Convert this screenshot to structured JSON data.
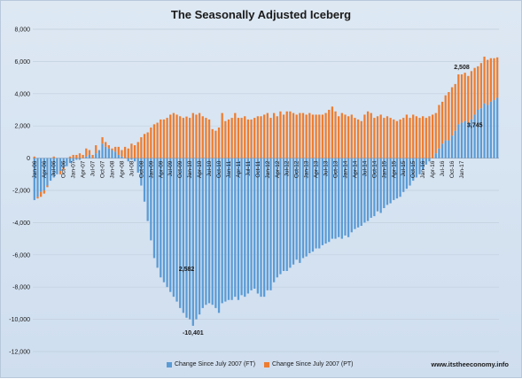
{
  "title": "The Seasonally Adjusted Iceberg",
  "source": "www.itstheeconomy.info",
  "chart_data": {
    "type": "bar",
    "stacked": true,
    "ylim": [
      -12000,
      8000
    ],
    "yticks": [
      8000,
      6000,
      4000,
      2000,
      0,
      -2000,
      -4000,
      -6000,
      -8000,
      -10000,
      -12000
    ],
    "ytick_labels": [
      "8,000",
      "6,000",
      "4,000",
      "2,000",
      "0",
      "-2,000",
      "-4,000",
      "-6,000",
      "-8,000",
      "-10,000",
      "-12,000"
    ],
    "xtick_labels": [
      "Jan-06",
      "Apr-06",
      "Jul-06",
      "Oct-06",
      "Jan-07",
      "Apr-07",
      "Jul-07",
      "Oct-07",
      "Jan-08",
      "Apr-08",
      "Jul-08",
      "Oct-08",
      "Jan-09",
      "Apr-09",
      "Jul-09",
      "Oct-09",
      "Jan-10",
      "Apr-10",
      "Jul-10",
      "Oct-10",
      "Jan-11",
      "Apr-11",
      "Jul-11",
      "Oct-11",
      "Jan-12",
      "Apr-12",
      "Jul-12",
      "Oct-12",
      "Jan-13",
      "Apr-13",
      "Jul-13",
      "Oct-13",
      "Jan-14",
      "Apr-14",
      "Jul-14",
      "Oct-14",
      "Jan-15",
      "Apr-15",
      "Jul-15",
      "Oct-15",
      "Jan-16",
      "Apr-16",
      "Jul-16",
      "Oct-16",
      "Jan-17"
    ],
    "xtick_every": 3,
    "grid": "horizontal",
    "legend_position": "bottom",
    "series": [
      {
        "name": "Change Since July 2007 (FT)",
        "color": "#5b9bd5",
        "values": [
          -2600,
          -2400,
          -2100,
          -2000,
          -1700,
          -1400,
          -1200,
          -1000,
          -800,
          -600,
          -500,
          -300,
          -200,
          -100,
          -100,
          0,
          100,
          200,
          0,
          300,
          500,
          900,
          700,
          600,
          500,
          400,
          200,
          100,
          0,
          -200,
          -100,
          -200,
          -900,
          -1700,
          -2700,
          -3900,
          -5100,
          -6200,
          -6800,
          -7400,
          -7700,
          -8000,
          -8300,
          -8600,
          -8900,
          -9300,
          -9600,
          -9900,
          -10000,
          -10401,
          -10000,
          -9700,
          -9300,
          -9100,
          -9000,
          -9100,
          -9300,
          -9600,
          -9000,
          -8900,
          -8800,
          -8800,
          -8600,
          -8800,
          -8500,
          -8600,
          -8400,
          -8200,
          -8100,
          -8400,
          -8600,
          -8600,
          -8200,
          -8200,
          -7700,
          -7400,
          -7200,
          -7000,
          -7000,
          -6800,
          -6600,
          -6300,
          -6500,
          -6200,
          -6100,
          -5900,
          -5800,
          -5600,
          -5600,
          -5400,
          -5300,
          -5200,
          -5000,
          -5000,
          -4900,
          -5000,
          -4800,
          -4900,
          -4600,
          -4400,
          -4300,
          -4200,
          -4000,
          -3900,
          -3700,
          -3600,
          -3300,
          -3400,
          -3100,
          -2900,
          -2800,
          -2600,
          -2500,
          -2400,
          -2100,
          -1900,
          -1700,
          -1400,
          -1200,
          -1000,
          -700,
          -400,
          -200,
          0,
          300,
          600,
          900,
          1100,
          1100,
          1400,
          1700,
          2100,
          2200,
          2300,
          2200,
          2400,
          2700,
          3000,
          3100,
          3400,
          3300,
          3500,
          3600,
          3745
        ]
      },
      {
        "name": "Change Since July 2007 (PT)",
        "color": "#ed7d31",
        "values": [
          100,
          -100,
          -300,
          -200,
          -100,
          0,
          100,
          0,
          -200,
          -100,
          0,
          100,
          200,
          200,
          300,
          200,
          500,
          300,
          200,
          500,
          0,
          400,
          300,
          200,
          100,
          300,
          500,
          400,
          700,
          600,
          900,
          800,
          1000,
          1300,
          1500,
          1600,
          1900,
          2100,
          2200,
          2400,
          2400,
          2500,
          2700,
          2800,
          2700,
          2600,
          2500,
          2582,
          2500,
          2800,
          2700,
          2800,
          2600,
          2500,
          2400,
          1800,
          1700,
          1900,
          2800,
          2300,
          2400,
          2500,
          2800,
          2500,
          2500,
          2600,
          2400,
          2400,
          2500,
          2600,
          2600,
          2700,
          2800,
          2500,
          2800,
          2600,
          2900,
          2700,
          2900,
          2900,
          2800,
          2700,
          2800,
          2800,
          2700,
          2800,
          2700,
          2700,
          2700,
          2700,
          2800,
          3000,
          3200,
          2900,
          2600,
          2800,
          2700,
          2600,
          2700,
          2500,
          2400,
          2300,
          2700,
          2900,
          2800,
          2500,
          2600,
          2700,
          2500,
          2600,
          2500,
          2400,
          2300,
          2400,
          2500,
          2700,
          2500,
          2700,
          2600,
          2500,
          2600,
          2500,
          2600,
          2700,
          2500,
          2700,
          2600,
          2800,
          3000,
          3000,
          2900,
          3100,
          3000,
          3000,
          2900,
          3000,
          2900,
          2700,
          2800,
          2900,
          2800,
          2700,
          2600,
          2508
        ]
      }
    ],
    "annotations": [
      {
        "text": "2,582",
        "index": 47,
        "series": 1
      },
      {
        "text": "-10,401",
        "index": 49,
        "series": 0
      },
      {
        "text": "2,508",
        "index": 132,
        "series": 1
      },
      {
        "text": "3,745",
        "index": 132,
        "series": 0
      }
    ]
  }
}
